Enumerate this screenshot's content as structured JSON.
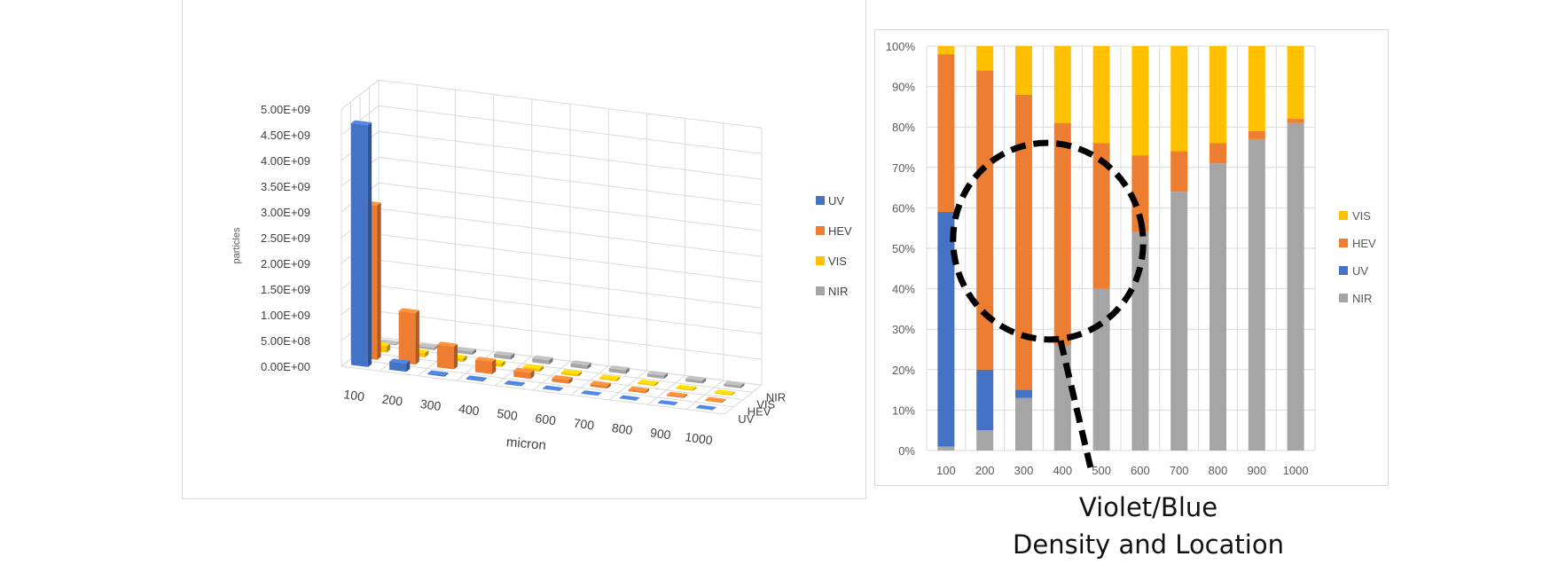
{
  "charts": {
    "left": {
      "ylabel": "particles",
      "xlabel": "micron",
      "yticks": [
        "0.00E+00",
        "5.00E+08",
        "1.00E+09",
        "1.50E+09",
        "2.00E+09",
        "2.50E+09",
        "3.00E+09",
        "3.50E+09",
        "4.00E+09",
        "4.50E+09",
        "5.00E+09"
      ],
      "legend": [
        "UV",
        "HEV",
        "VIS",
        "NIR"
      ]
    },
    "right": {
      "yticks": [
        "0%",
        "10%",
        "20%",
        "30%",
        "40%",
        "50%",
        "60%",
        "70%",
        "80%",
        "90%",
        "100%"
      ],
      "legend": [
        "VIS",
        "HEV",
        "UV",
        "NIR"
      ]
    }
  },
  "caption": {
    "line1": "Violet/Blue",
    "line2": "Density and Location"
  },
  "colors": {
    "UV": "#4472c4",
    "HEV": "#ed7d31",
    "VIS": "#ffc000",
    "NIR": "#a5a5a5",
    "grid": "#d9d9d9",
    "annotation": "#000000"
  },
  "chart_data": [
    {
      "type": "bar",
      "subtype": "3d-clustered",
      "title": "",
      "xlabel": "micron",
      "ylabel": "particles",
      "categories": [
        "100",
        "200",
        "300",
        "400",
        "500",
        "600",
        "700",
        "800",
        "900",
        "1000"
      ],
      "depth_categories": [
        "UV",
        "HEV",
        "VIS",
        "NIR"
      ],
      "ylim": [
        0,
        5000000000
      ],
      "series": [
        {
          "name": "UV",
          "values": [
            4700000000,
            160000000,
            25000000,
            18000000,
            14000000,
            10000000,
            8000000,
            7000000,
            6000000,
            5000000
          ]
        },
        {
          "name": "HEV",
          "values": [
            3000000000,
            1000000000,
            440000000,
            240000000,
            120000000,
            70000000,
            50000000,
            35000000,
            25000000,
            20000000
          ]
        },
        {
          "name": "VIS",
          "values": [
            120000000,
            80000000,
            70000000,
            60000000,
            55000000,
            45000000,
            35000000,
            30000000,
            25000000,
            20000000
          ]
        },
        {
          "name": "NIR",
          "values": [
            20000000,
            40000000,
            60000000,
            70000000,
            80000000,
            75000000,
            70000000,
            60000000,
            55000000,
            50000000
          ]
        }
      ],
      "legend_position": "right",
      "grid": true
    },
    {
      "type": "bar",
      "subtype": "100%-stacked",
      "title": "",
      "categories": [
        "100",
        "200",
        "300",
        "400",
        "500",
        "600",
        "700",
        "800",
        "900",
        "1000"
      ],
      "ylim": [
        0,
        100
      ],
      "series": [
        {
          "name": "NIR",
          "values": [
            1,
            5,
            13,
            26,
            40,
            54,
            64,
            71,
            77,
            81
          ]
        },
        {
          "name": "UV",
          "values": [
            58,
            15,
            2,
            0,
            0,
            0,
            0,
            0,
            0,
            0
          ]
        },
        {
          "name": "HEV",
          "values": [
            39,
            74,
            73,
            55,
            36,
            19,
            10,
            5,
            2,
            1
          ]
        },
        {
          "name": "VIS",
          "values": [
            2,
            6,
            12,
            19,
            24,
            27,
            26,
            24,
            21,
            18
          ]
        }
      ],
      "legend_position": "right",
      "grid": true,
      "annotation": "dashed circle with pointer"
    }
  ]
}
